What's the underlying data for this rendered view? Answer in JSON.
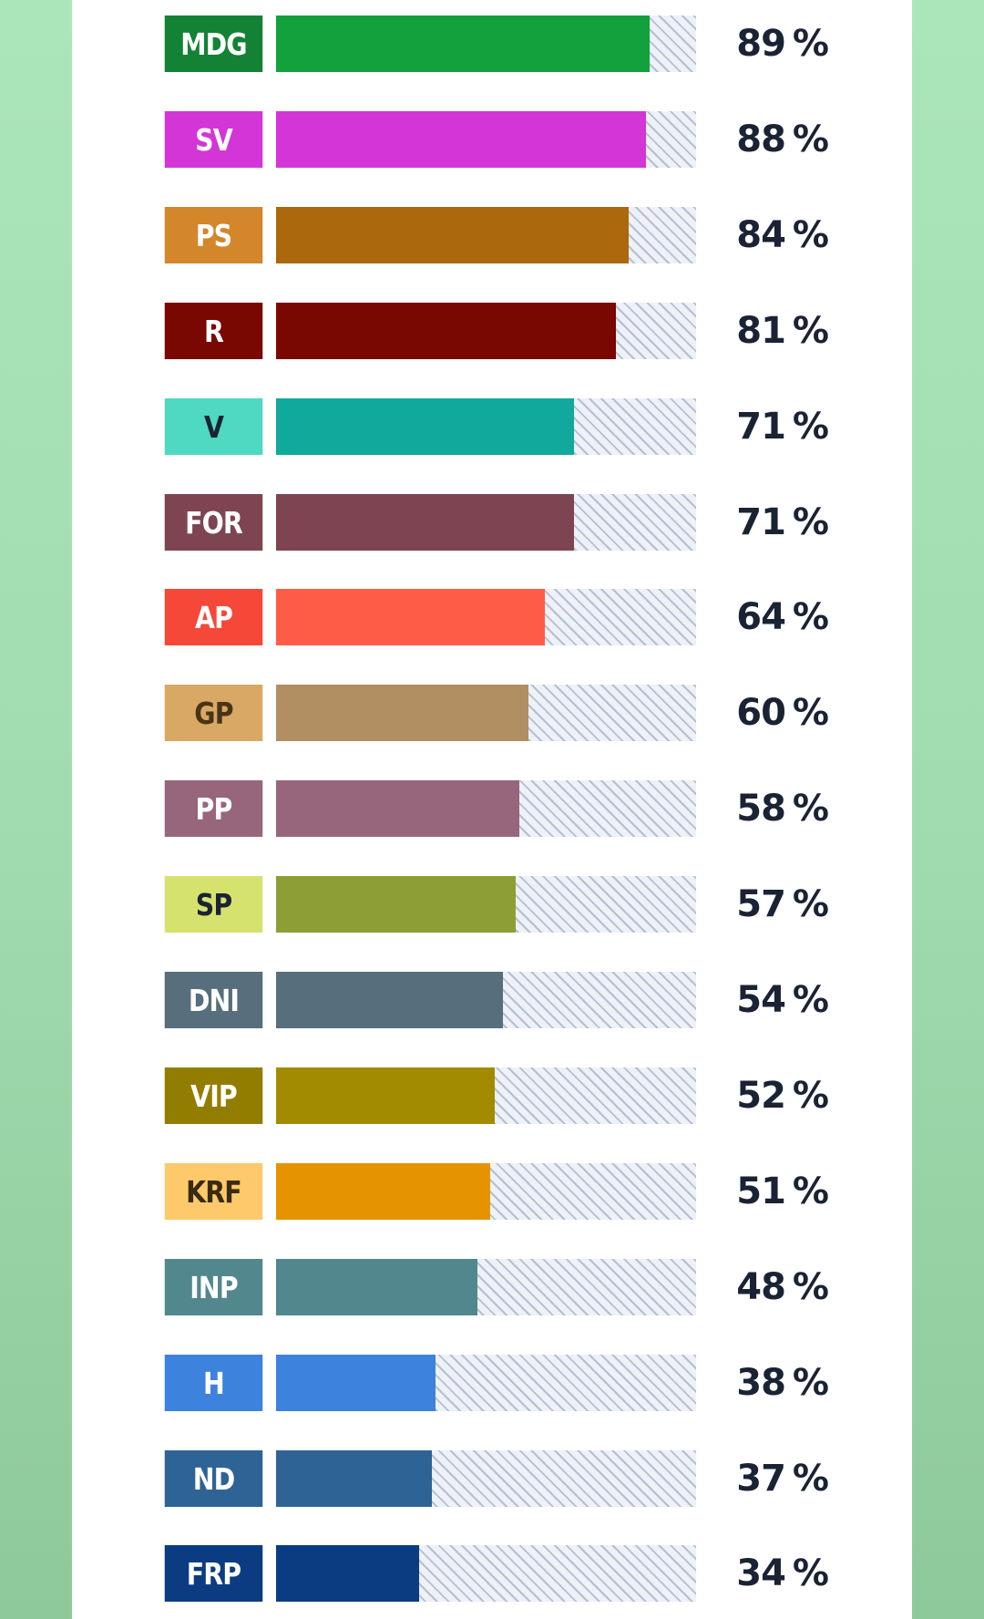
{
  "chart_data": {
    "type": "bar",
    "orientation": "horizontal",
    "value_suffix": "%",
    "xlim": [
      0,
      100
    ],
    "bars": [
      {
        "label": "MDG",
        "value": 89,
        "display": "89",
        "color": "#12a13c",
        "badge_color": "#138234",
        "text_color": "#ffffff"
      },
      {
        "label": "SV",
        "value": 88,
        "display": "88",
        "color": "#d435d6",
        "badge_color": "#d435d6",
        "text_color": "#ffffff"
      },
      {
        "label": "PS",
        "value": 84,
        "display": "84",
        "color": "#ac680c",
        "badge_color": "#d4862a",
        "text_color": "#ffffff"
      },
      {
        "label": "R",
        "value": 81,
        "display": "81",
        "color": "#790802",
        "badge_color": "#790802",
        "text_color": "#ffffff"
      },
      {
        "label": "V",
        "value": 71,
        "display": "71",
        "color": "#10a99b",
        "badge_color": "#4fd8c2",
        "text_color": "#1a2334"
      },
      {
        "label": "FOR",
        "value": 71,
        "display": "71",
        "color": "#7e4451",
        "badge_color": "#7e4451",
        "text_color": "#ffffff"
      },
      {
        "label": "AP",
        "value": 64,
        "display": "64",
        "color": "#ff5c48",
        "badge_color": "#f54838",
        "text_color": "#ffffff"
      },
      {
        "label": "GP",
        "value": 60,
        "display": "60",
        "color": "#b28f62",
        "badge_color": "#d8a864",
        "text_color": "#4a3418"
      },
      {
        "label": "PP",
        "value": 58,
        "display": "58",
        "color": "#98667c",
        "badge_color": "#98667c",
        "text_color": "#ffffff"
      },
      {
        "label": "SP",
        "value": 57,
        "display": "57",
        "color": "#8d9f34",
        "badge_color": "#d6e26e",
        "text_color": "#1a2334"
      },
      {
        "label": "DNI",
        "value": 54,
        "display": "54",
        "color": "#576e7c",
        "badge_color": "#576e7c",
        "text_color": "#ffffff"
      },
      {
        "label": "VIP",
        "value": 52,
        "display": "52",
        "color": "#a38b00",
        "badge_color": "#937d00",
        "text_color": "#ffffff"
      },
      {
        "label": "KRF",
        "value": 51,
        "display": "51",
        "color": "#e69300",
        "badge_color": "#fdc96a",
        "text_color": "#3a2a10"
      },
      {
        "label": "INP",
        "value": 48,
        "display": "48",
        "color": "#52878d",
        "badge_color": "#52878d",
        "text_color": "#ffffff"
      },
      {
        "label": "H",
        "value": 38,
        "display": "38",
        "color": "#3d82dc",
        "badge_color": "#3d82dc",
        "text_color": "#ffffff"
      },
      {
        "label": "ND",
        "value": 37,
        "display": "37",
        "color": "#2e6495",
        "badge_color": "#2e6495",
        "text_color": "#ffffff"
      },
      {
        "label": "FRP",
        "value": 34,
        "display": "34",
        "color": "#0b3c82",
        "badge_color": "#0b3c82",
        "text_color": "#ffffff"
      }
    ]
  }
}
